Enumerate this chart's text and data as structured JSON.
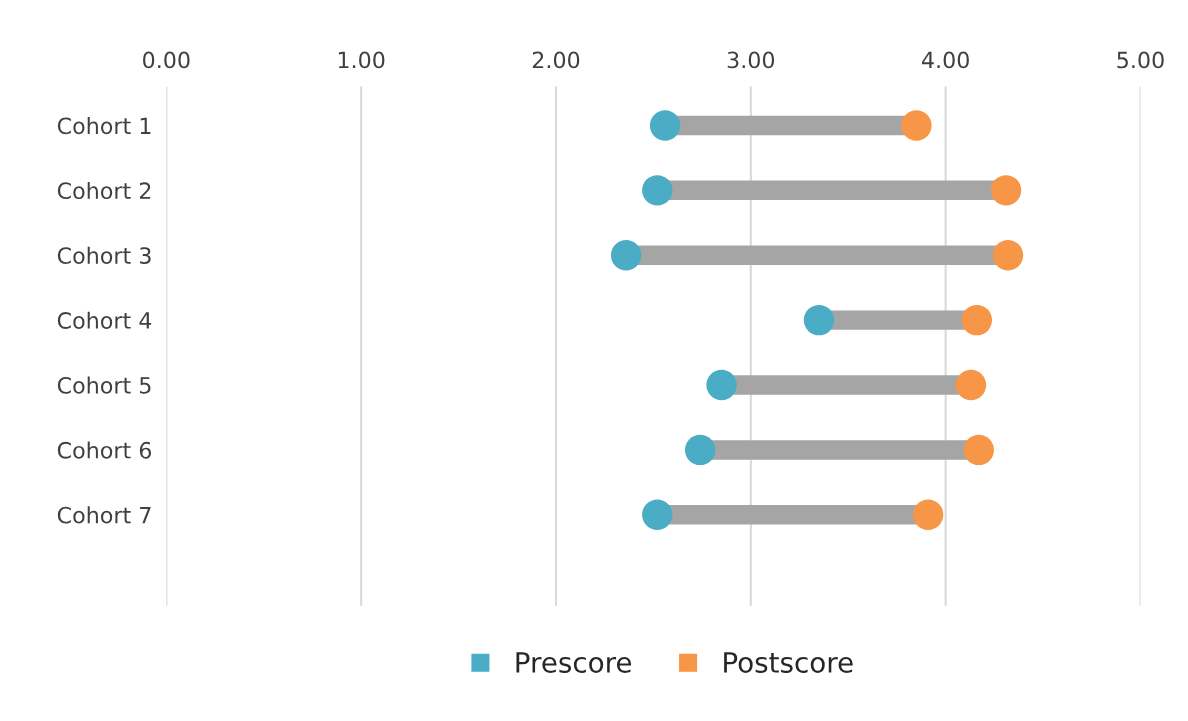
{
  "chart_data": {
    "type": "scatter",
    "orientation": "horizontal",
    "categories": [
      "Cohort 1",
      "Cohort 2",
      "Cohort 3",
      "Cohort 4",
      "Cohort 5",
      "Cohort 6",
      "Cohort 7"
    ],
    "series": [
      {
        "name": "Prescore",
        "color": "#4bacc6",
        "values": [
          2.56,
          2.52,
          2.36,
          3.35,
          2.85,
          2.74,
          2.52
        ]
      },
      {
        "name": "Postscore",
        "color": "#f79646",
        "values": [
          3.85,
          4.31,
          4.32,
          4.16,
          4.13,
          4.17,
          3.91
        ]
      }
    ],
    "xlim": [
      0,
      5
    ],
    "xticks": [
      {
        "value": 0,
        "label": "0.00"
      },
      {
        "value": 1,
        "label": "1.00"
      },
      {
        "value": 2,
        "label": "2.00"
      },
      {
        "value": 3,
        "label": "3.00"
      },
      {
        "value": 4,
        "label": "4.00"
      },
      {
        "value": 5,
        "label": "5.00"
      }
    ],
    "grid": "x",
    "legend": "bottom",
    "marker": "circle"
  }
}
